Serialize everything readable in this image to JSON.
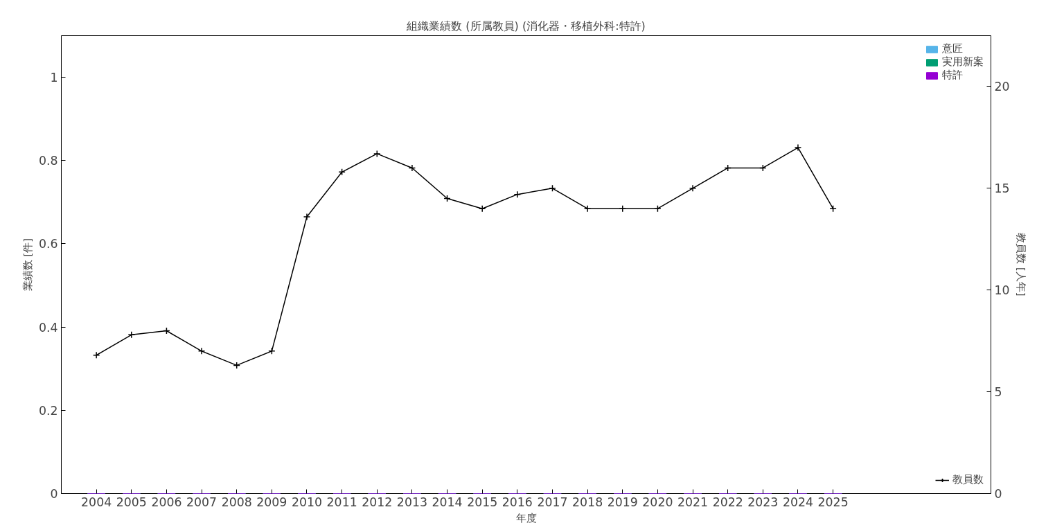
{
  "chart_data": {
    "type": "bar",
    "title": "組織業績数 (所属教員) (消化器・移植外科:特許)",
    "xlabel": "年度",
    "ylabel": "業績数 [件]",
    "y2label": "教員数 [人年]",
    "x": [
      2004,
      2005,
      2006,
      2007,
      2008,
      2009,
      2010,
      2011,
      2012,
      2013,
      2014,
      2015,
      2016,
      2017,
      2018,
      2019,
      2020,
      2021,
      2022,
      2023,
      2024,
      2025
    ],
    "series": [
      {
        "name": "意匠",
        "color": "#56b4e9",
        "values": [
          0,
          0,
          0,
          0,
          0,
          0,
          0,
          0,
          0,
          0,
          0,
          0,
          0,
          0,
          0,
          0,
          0,
          0,
          0,
          0,
          0,
          0
        ]
      },
      {
        "name": "実用新案",
        "color": "#009e73",
        "values": [
          0,
          0,
          0,
          0,
          0,
          0,
          0,
          0,
          0,
          0,
          0,
          0,
          0,
          0,
          0,
          0,
          0,
          0,
          0,
          0,
          0,
          0
        ]
      },
      {
        "name": "特許",
        "color": "#9400d3",
        "values": [
          0,
          0,
          0,
          0,
          0,
          0,
          0,
          0,
          0,
          0,
          0,
          0,
          0,
          0,
          0,
          0,
          0,
          0,
          0,
          0,
          0,
          0
        ]
      },
      {
        "name": "教員数",
        "type": "line",
        "axis": "y2",
        "color": "#000000",
        "marker": "cross",
        "values": [
          6.8,
          7.8,
          8.0,
          7.0,
          6.3,
          7.0,
          13.6,
          15.8,
          16.7,
          16.0,
          14.5,
          14.0,
          14.7,
          15.0,
          14.0,
          14.0,
          14.0,
          15.0,
          16.0,
          16.0,
          17.0,
          14.0
        ]
      }
    ],
    "xlim": [
      2003,
      2029.5
    ],
    "xticks": [
      2004,
      2005,
      2006,
      2007,
      2008,
      2009,
      2010,
      2011,
      2012,
      2013,
      2014,
      2015,
      2016,
      2017,
      2018,
      2019,
      2020,
      2021,
      2022,
      2023,
      2024,
      2025
    ],
    "ylim": [
      0,
      1.1
    ],
    "yticks": [
      0,
      0.2,
      0.4,
      0.6,
      0.8,
      1
    ],
    "y2lim": [
      0,
      22.5
    ],
    "y2ticks": [
      0,
      5,
      10,
      15,
      20
    ],
    "grid": false,
    "legend": "top right"
  }
}
